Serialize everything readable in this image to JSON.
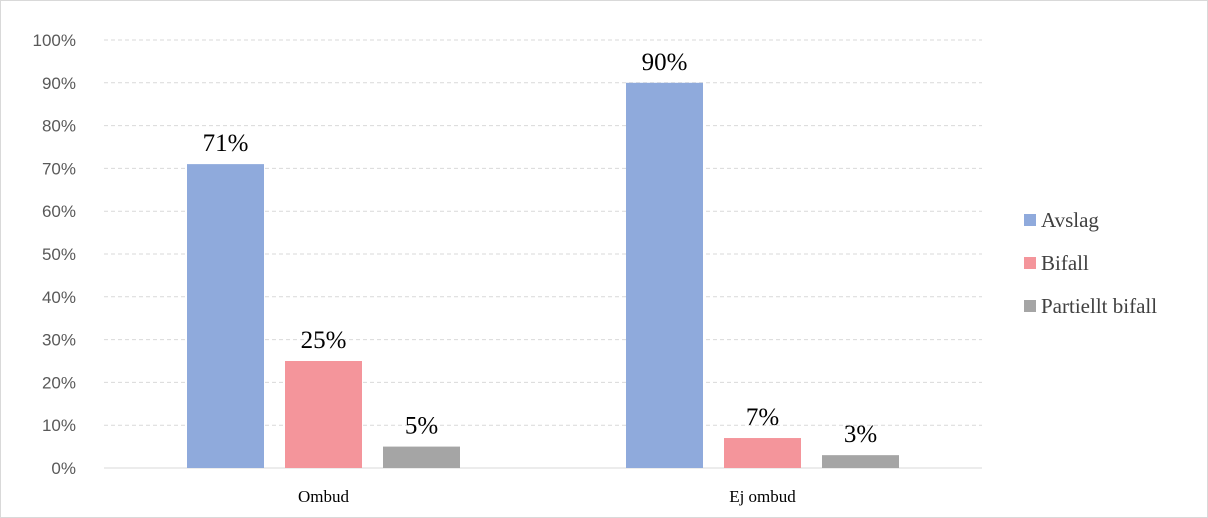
{
  "chart_data": {
    "type": "bar",
    "categories": [
      "Ombud",
      "Ej ombud"
    ],
    "series": [
      {
        "name": "Avslag",
        "values": [
          71,
          90
        ],
        "labels": [
          "71%",
          "90%"
        ],
        "color": "#8faadc"
      },
      {
        "name": "Bifall",
        "values": [
          25,
          7
        ],
        "labels": [
          "25%",
          "7%"
        ],
        "color": "#f4959b"
      },
      {
        "name": "Partiellt bifall",
        "values": [
          5,
          3
        ],
        "labels": [
          "5%",
          "3%"
        ],
        "color": "#a5a5a5"
      }
    ],
    "y_ticks": [
      "0%",
      "10%",
      "20%",
      "30%",
      "40%",
      "50%",
      "60%",
      "70%",
      "80%",
      "90%",
      "100%"
    ],
    "ylim": [
      0,
      100
    ],
    "grid": true,
    "legend": "right",
    "title": "",
    "xlabel": "",
    "ylabel": ""
  }
}
